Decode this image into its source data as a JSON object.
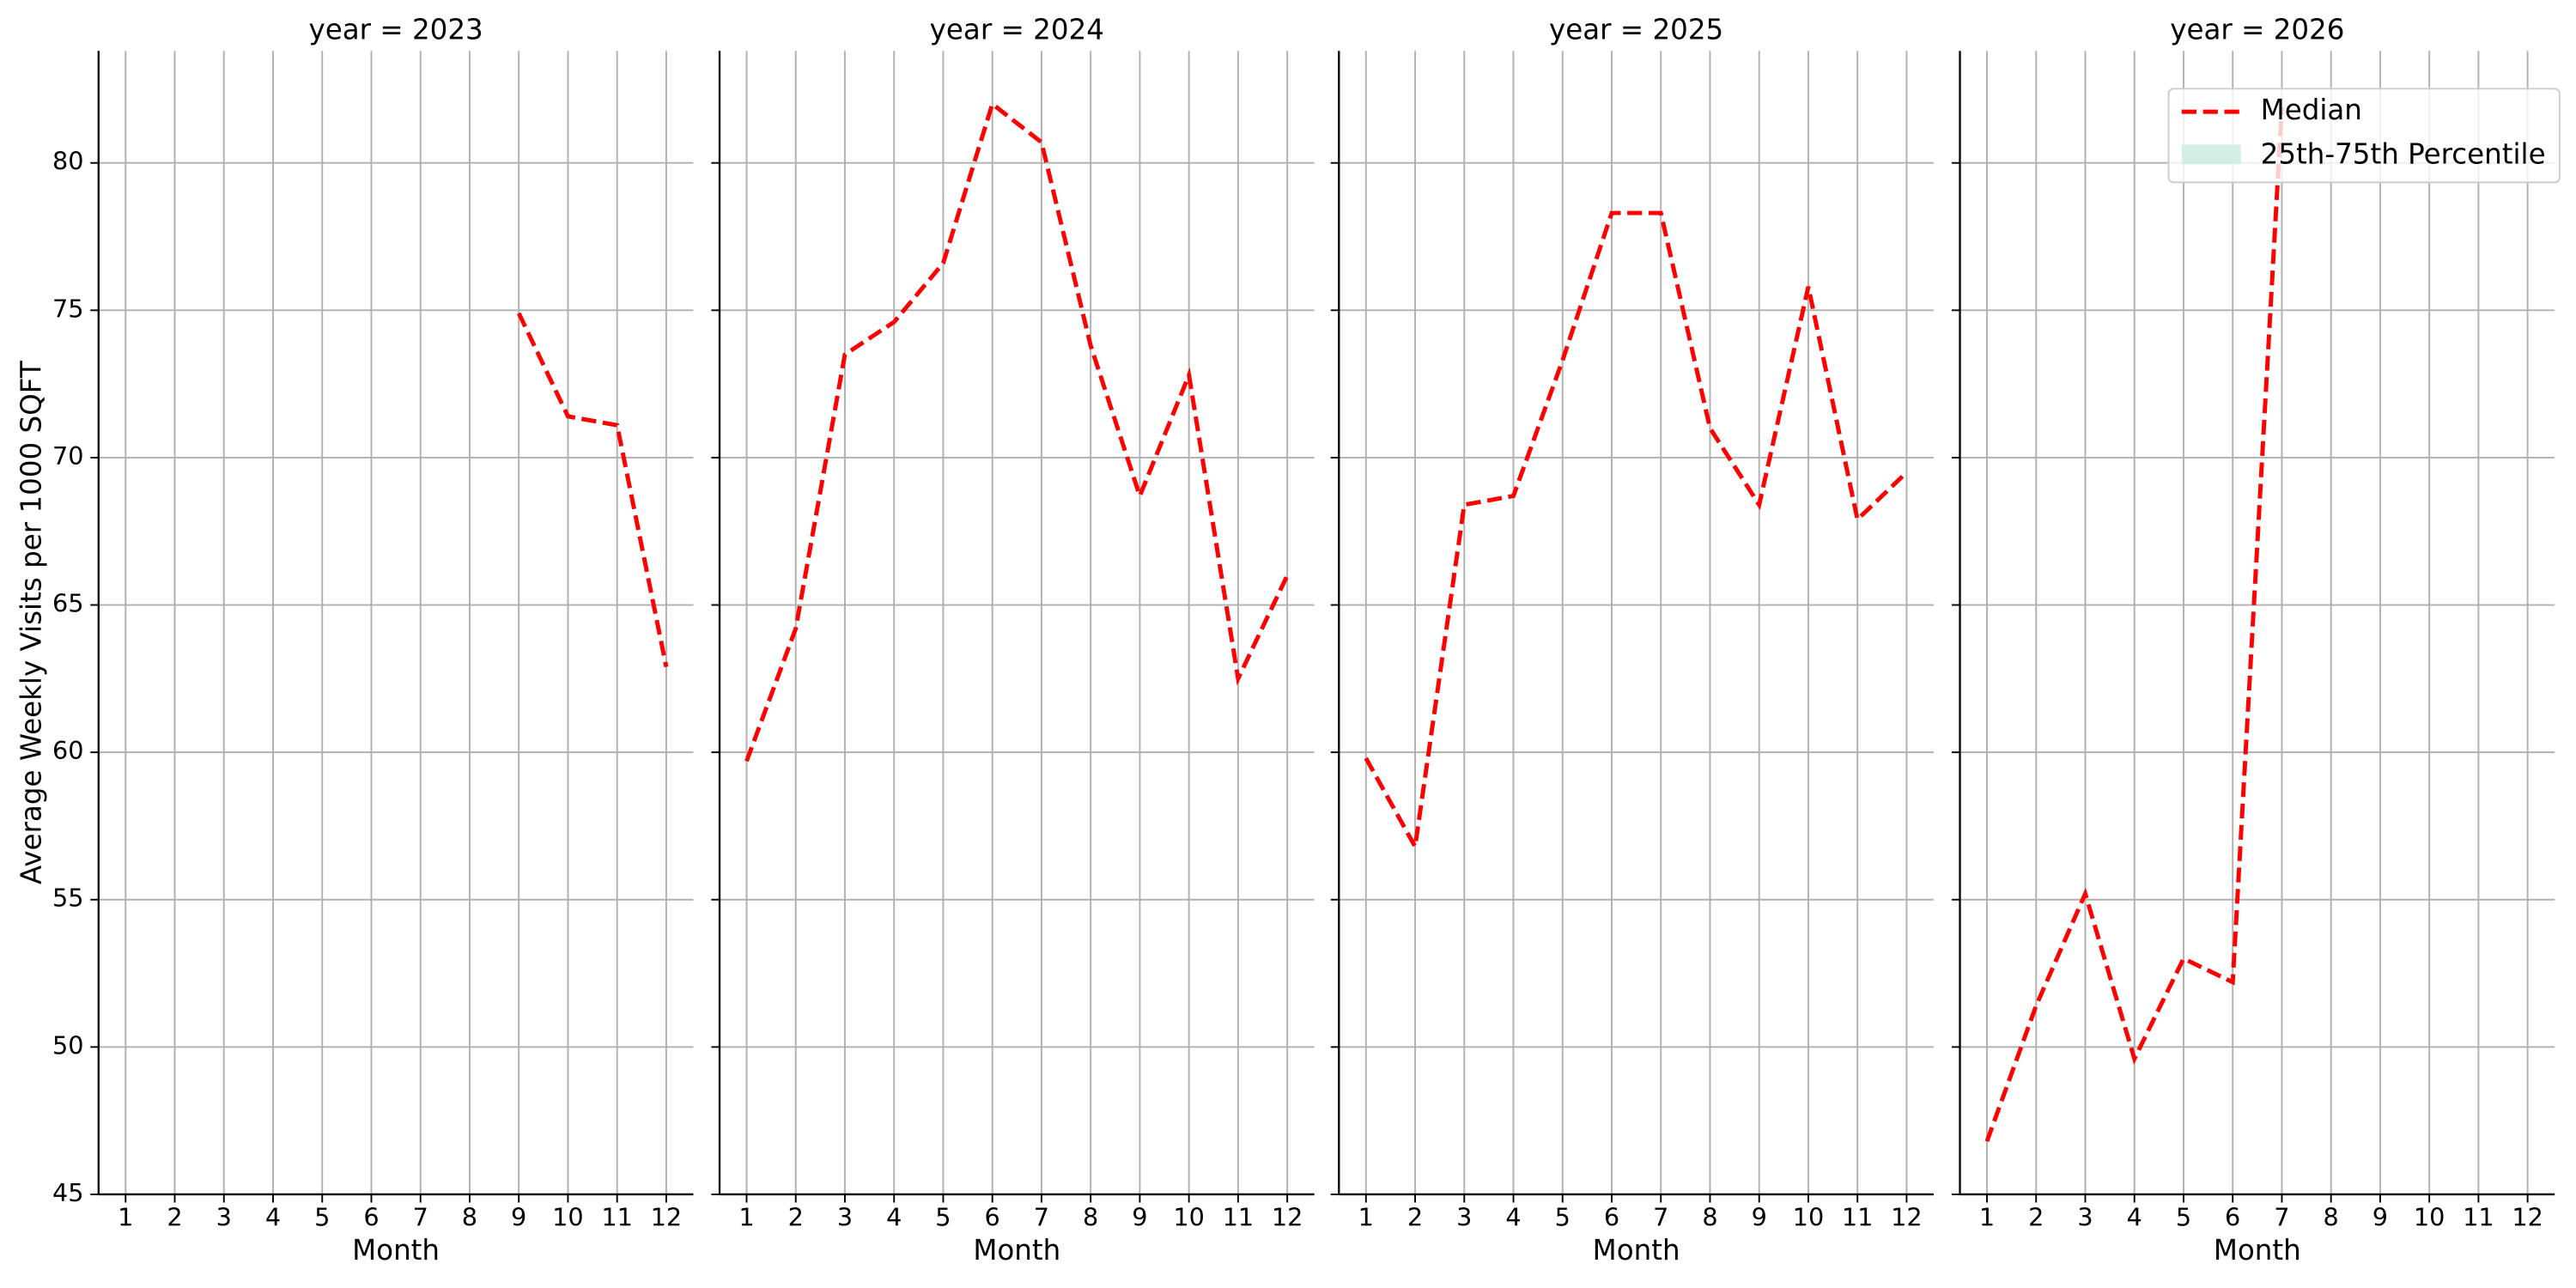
{
  "chart_data": [
    {
      "type": "line",
      "title": "year = 2023",
      "x_label": "Month",
      "y_label": "Average Weekly Visits per 1000 SQFT",
      "x": [
        1,
        2,
        3,
        4,
        5,
        6,
        7,
        8,
        9,
        10,
        11,
        12
      ],
      "series": [
        {
          "name": "Median",
          "color": "#ff0000",
          "values": [
            null,
            null,
            null,
            null,
            null,
            null,
            null,
            null,
            74.9,
            71.4,
            71.1,
            62.9
          ]
        }
      ],
      "xlim": [
        0.45,
        12.55
      ],
      "ylim": [
        45,
        83.8
      ],
      "xticks": [
        1,
        2,
        3,
        4,
        5,
        6,
        7,
        8,
        9,
        10,
        11,
        12
      ],
      "yticks": [
        45,
        50,
        55,
        60,
        65,
        70,
        75,
        80
      ],
      "grid": true
    },
    {
      "type": "line",
      "title": "year = 2024",
      "x_label": "Month",
      "x": [
        1,
        2,
        3,
        4,
        5,
        6,
        7,
        8,
        9,
        10,
        11,
        12
      ],
      "series": [
        {
          "name": "Median",
          "color": "#ff0000",
          "values": [
            59.7,
            64.2,
            73.5,
            74.6,
            76.6,
            82.0,
            80.7,
            73.8,
            68.7,
            72.8,
            62.5,
            66.0
          ]
        }
      ],
      "xlim": [
        0.45,
        12.55
      ],
      "ylim": [
        45,
        83.8
      ],
      "xticks": [
        1,
        2,
        3,
        4,
        5,
        6,
        7,
        8,
        9,
        10,
        11,
        12
      ],
      "sharey": true,
      "grid": true
    },
    {
      "type": "line",
      "title": "year = 2025",
      "x_label": "Month",
      "x": [
        1,
        2,
        3,
        4,
        5,
        6,
        7,
        8,
        9,
        10,
        11,
        12
      ],
      "series": [
        {
          "name": "Median",
          "color": "#ff0000",
          "values": [
            59.8,
            56.8,
            68.4,
            68.7,
            73.3,
            78.3,
            78.3,
            71.0,
            68.4,
            75.8,
            67.9,
            69.5
          ]
        }
      ],
      "xlim": [
        0.45,
        12.55
      ],
      "ylim": [
        45,
        83.8
      ],
      "xticks": [
        1,
        2,
        3,
        4,
        5,
        6,
        7,
        8,
        9,
        10,
        11,
        12
      ],
      "sharey": true,
      "grid": true
    },
    {
      "type": "line",
      "title": "year = 2026",
      "x_label": "Month",
      "x": [
        1,
        2,
        3,
        4,
        5,
        6,
        7,
        8,
        9,
        10,
        11,
        12
      ],
      "series": [
        {
          "name": "Median",
          "color": "#ff0000",
          "values": [
            46.8,
            51.4,
            55.2,
            49.6,
            53.0,
            52.2,
            81.9,
            null,
            null,
            null,
            null,
            null
          ]
        }
      ],
      "band": {
        "name": "25th-75th Percentile",
        "color": "#d4ede5"
      },
      "xlim": [
        0.45,
        12.55
      ],
      "ylim": [
        45,
        83.8
      ],
      "xticks": [
        1,
        2,
        3,
        4,
        5,
        6,
        7,
        8,
        9,
        10,
        11,
        12
      ],
      "sharey": true,
      "grid": true,
      "legend": "upper right"
    }
  ]
}
